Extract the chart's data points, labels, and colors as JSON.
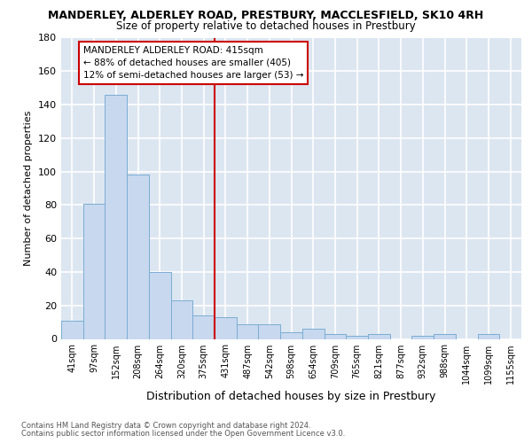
{
  "title": "MANDERLEY, ALDERLEY ROAD, PRESTBURY, MACCLESFIELD, SK10 4RH",
  "subtitle": "Size of property relative to detached houses in Prestbury",
  "xlabel": "Distribution of detached houses by size in Prestbury",
  "ylabel": "Number of detached properties",
  "categories": [
    "41sqm",
    "97sqm",
    "152sqm",
    "208sqm",
    "264sqm",
    "320sqm",
    "375sqm",
    "431sqm",
    "487sqm",
    "542sqm",
    "598sqm",
    "654sqm",
    "709sqm",
    "765sqm",
    "821sqm",
    "877sqm",
    "932sqm",
    "988sqm",
    "1044sqm",
    "1099sqm",
    "1155sqm"
  ],
  "values": [
    11,
    81,
    146,
    98,
    40,
    23,
    14,
    13,
    9,
    9,
    4,
    6,
    3,
    2,
    3,
    0,
    2,
    3,
    0,
    3,
    0
  ],
  "bar_color": "#c8d8ee",
  "bar_edge_color": "#7aadd4",
  "vline_color": "#cc0000",
  "annotation_title": "MANDERLEY ALDERLEY ROAD: 415sqm",
  "annotation_line1": "← 88% of detached houses are smaller (405)",
  "annotation_line2": "12% of semi-detached houses are larger (53) →",
  "vline_box_color": "#cc0000",
  "ylim": [
    0,
    180
  ],
  "yticks": [
    0,
    20,
    40,
    60,
    80,
    100,
    120,
    140,
    160,
    180
  ],
  "background_color": "#dce6f1",
  "grid_color": "#ffffff",
  "footnote1": "Contains HM Land Registry data © Crown copyright and database right 2024.",
  "footnote2": "Contains public sector information licensed under the Open Government Licence v3.0."
}
